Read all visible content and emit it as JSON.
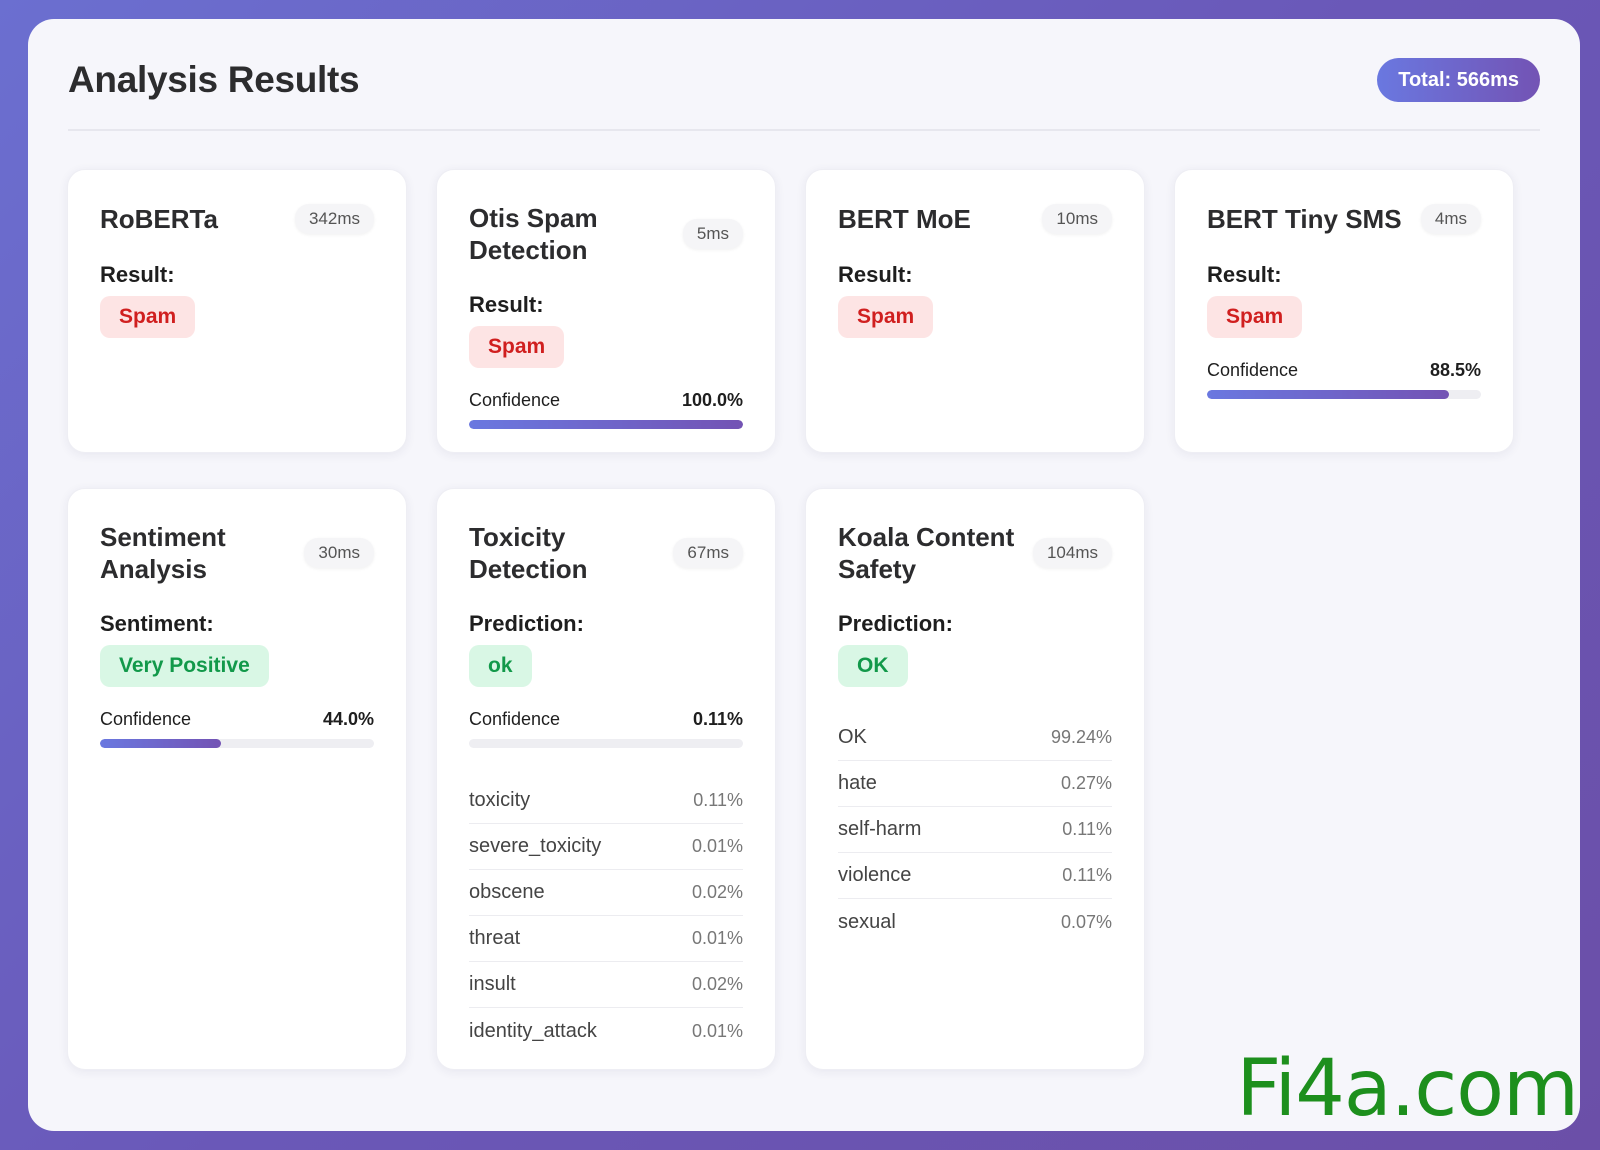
{
  "panel": {
    "title": "Analysis Results",
    "total": "Total: 566ms"
  },
  "cards": [
    {
      "title": "RoBERTa",
      "time": "342ms",
      "label": "Result:",
      "badge": "Spam",
      "badge_tone": "red"
    },
    {
      "title": "Otis Spam Detection",
      "time": "5ms",
      "label": "Result:",
      "badge": "Spam",
      "badge_tone": "red",
      "confidence_label": "Confidence",
      "confidence_text": "100.0%",
      "confidence": 1.0
    },
    {
      "title": "BERT MoE",
      "time": "10ms",
      "label": "Result:",
      "badge": "Spam",
      "badge_tone": "red"
    },
    {
      "title": "BERT Tiny SMS",
      "time": "4ms",
      "label": "Result:",
      "badge": "Spam",
      "badge_tone": "red",
      "confidence_label": "Confidence",
      "confidence_text": "88.5%",
      "confidence": 0.885
    },
    {
      "title": "Sentiment Analysis",
      "time": "30ms",
      "label": "Sentiment:",
      "badge": "Very Positive",
      "badge_tone": "green",
      "confidence_label": "Confidence",
      "confidence_text": "44.0%",
      "confidence": 0.44
    },
    {
      "title": "Toxicity Detection",
      "time": "67ms",
      "label": "Prediction:",
      "badge": "ok",
      "badge_tone": "green",
      "confidence_label": "Confidence",
      "confidence_text": "0.11%",
      "confidence": 0.0011,
      "metrics": [
        {
          "name": "toxicity",
          "value": "0.11%"
        },
        {
          "name": "severe_toxicity",
          "value": "0.01%"
        },
        {
          "name": "obscene",
          "value": "0.02%"
        },
        {
          "name": "threat",
          "value": "0.01%"
        },
        {
          "name": "insult",
          "value": "0.02%"
        },
        {
          "name": "identity_attack",
          "value": "0.01%"
        }
      ]
    },
    {
      "title": "Koala Content Safety",
      "time": "104ms",
      "label": "Prediction:",
      "badge": "OK",
      "badge_tone": "green",
      "metrics": [
        {
          "name": "OK",
          "value": "99.24%"
        },
        {
          "name": "hate",
          "value": "0.27%"
        },
        {
          "name": "self-harm",
          "value": "0.11%"
        },
        {
          "name": "violence",
          "value": "0.11%"
        },
        {
          "name": "sexual",
          "value": "0.07%"
        }
      ]
    }
  ],
  "watermark": "Fi4a.com",
  "colors": {
    "accent_start": "#6a78e0",
    "accent_end": "#7353b4",
    "spam": "#d01f1f",
    "ok": "#12994a"
  }
}
